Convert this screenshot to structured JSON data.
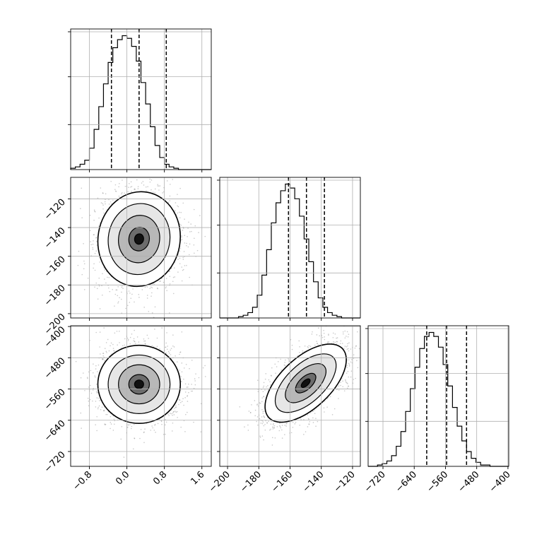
{
  "chart_data": {
    "type": "corner",
    "title": "",
    "grid": true,
    "parameters": [
      {
        "xlim": [
          -1.2,
          1.8
        ],
        "ticks": [
          -0.8,
          0.0,
          0.8,
          1.6
        ],
        "tick_labels": [
          "−0.8",
          "0.0",
          "0.8",
          "1.6"
        ],
        "quantiles": [
          -0.33,
          0.26,
          0.84
        ]
      },
      {
        "xlim": [
          -205,
          -115
        ],
        "ticks": [
          -200,
          -180,
          -160,
          -140,
          -120
        ],
        "tick_labels": [
          "−200",
          "−180",
          "−160",
          "−140",
          "−120"
        ],
        "quantiles": [
          -161,
          -149.5,
          -138
        ]
      },
      {
        "xlim": [
          -758,
          -398
        ],
        "ticks": [
          -720,
          -640,
          -560,
          -480,
          -400
        ],
        "tick_labels": [
          "−720",
          "−640",
          "−560",
          "−480",
          "−400"
        ],
        "quantiles": [
          -608,
          -557,
          -506
        ]
      }
    ],
    "histograms": [
      {
        "param": 0,
        "bin_edges": [
          -1.2,
          -1.1,
          -1.0,
          -0.9,
          -0.8,
          -0.7,
          -0.6,
          -0.5,
          -0.4,
          -0.3,
          -0.2,
          -0.1,
          0.0,
          0.1,
          0.2,
          0.3,
          0.4,
          0.5,
          0.6,
          0.7,
          0.8,
          0.9,
          1.0,
          1.1,
          1.2,
          1.3,
          1.4,
          1.5,
          1.6,
          1.7,
          1.8
        ],
        "counts": [
          0.01,
          0.02,
          0.04,
          0.07,
          0.16,
          0.3,
          0.47,
          0.64,
          0.8,
          0.91,
          0.97,
          1.0,
          0.98,
          0.92,
          0.81,
          0.65,
          0.49,
          0.32,
          0.18,
          0.09,
          0.04,
          0.02,
          0.01,
          0.0,
          0.0,
          0.0,
          0.0,
          0.0,
          0.0,
          0.0
        ]
      },
      {
        "param": 1,
        "bin_edges": [
          -205,
          -202,
          -199,
          -196,
          -193,
          -190,
          -187,
          -184,
          -181,
          -178,
          -175,
          -172,
          -169,
          -166,
          -163,
          -160,
          -157,
          -154,
          -151,
          -148,
          -145,
          -142,
          -139,
          -136,
          -133,
          -130,
          -127,
          -124,
          -121,
          -118,
          -115
        ],
        "counts": [
          0.0,
          0.0,
          0.0,
          0.0,
          0.01,
          0.02,
          0.04,
          0.08,
          0.17,
          0.32,
          0.51,
          0.71,
          0.86,
          0.95,
          1.0,
          0.97,
          0.89,
          0.76,
          0.59,
          0.42,
          0.27,
          0.15,
          0.08,
          0.04,
          0.02,
          0.01,
          0.0,
          0.0,
          0.0,
          0.0
        ]
      },
      {
        "param": 2,
        "bin_edges": [
          -758,
          -746,
          -734,
          -722,
          -710,
          -698,
          -686,
          -674,
          -662,
          -650,
          -638,
          -626,
          -614,
          -602,
          -590,
          -578,
          -566,
          -554,
          -542,
          -530,
          -518,
          -506,
          -494,
          -482,
          -470,
          -458,
          -446,
          -434,
          -422,
          -410,
          -398
        ],
        "counts": [
          0.0,
          0.0,
          0.01,
          0.02,
          0.04,
          0.08,
          0.15,
          0.26,
          0.41,
          0.58,
          0.74,
          0.88,
          0.97,
          1.0,
          0.97,
          0.89,
          0.76,
          0.6,
          0.44,
          0.3,
          0.19,
          0.11,
          0.06,
          0.03,
          0.01,
          0.01,
          0.0,
          0.0,
          0.0,
          0.0
        ]
      }
    ],
    "pairs": [
      {
        "x_param": 0,
        "y_param": 1,
        "ylim": [
          -203,
          -105
        ],
        "yticks": [
          -200,
          -180,
          -160,
          -140,
          -120
        ],
        "ytick_labels": [
          "−200",
          "−180",
          "−160",
          "−140",
          "−120"
        ],
        "center": [
          0.26,
          -148
        ],
        "sigma": [
          0.44,
          16.5
        ],
        "correlation": 0.05
      },
      {
        "x_param": 0,
        "y_param": 2,
        "ylim": [
          -758,
          -398
        ],
        "yticks": [
          -720,
          -640,
          -560,
          -480,
          -400
        ],
        "ytick_labels": [
          "−720",
          "−640",
          "−560",
          "−480",
          "−400"
        ],
        "center": [
          0.26,
          -548
        ],
        "sigma": [
          0.44,
          50
        ],
        "correlation": 0.0
      },
      {
        "x_param": 1,
        "y_param": 2,
        "ylim": [
          -758,
          -398
        ],
        "yticks": [
          -720,
          -640,
          -560,
          -480,
          -400
        ],
        "ytick_labels": [
          "−720",
          "−640",
          "−560",
          "−480",
          "−400"
        ],
        "center": [
          -150,
          -545
        ],
        "sigma": [
          13,
          50
        ],
        "correlation": 0.6
      }
    ]
  }
}
